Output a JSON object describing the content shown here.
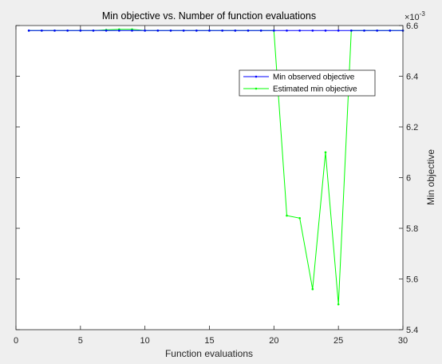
{
  "chart_data": {
    "type": "line",
    "title": "Min objective vs. Number of function evaluations",
    "xlabel": "Function evaluations",
    "ylabel": "Min objective",
    "y_exponent_label": "×10",
    "y_exponent_power": "-3",
    "xlim": [
      0,
      30
    ],
    "ylim": [
      5.4,
      6.6
    ],
    "y_scale_factor": 0.001,
    "xticks": [
      0,
      5,
      10,
      15,
      20,
      25,
      30
    ],
    "yticks": [
      5.4,
      5.6,
      5.8,
      6.0,
      6.2,
      6.4,
      6.6
    ],
    "ytick_labels": [
      "5.4",
      "5.6",
      "5.8",
      "6",
      "6.2",
      "6.4",
      "6.6"
    ],
    "y_axis_location": "right",
    "grid": false,
    "legend_location": "upper-right",
    "series": [
      {
        "name": "Min observed objective",
        "color": "#0000ff",
        "marker": "dot",
        "x": [
          1,
          2,
          3,
          4,
          5,
          6,
          7,
          8,
          9,
          10,
          11,
          12,
          13,
          14,
          15,
          16,
          17,
          18,
          19,
          20,
          21,
          22,
          23,
          24,
          25,
          26,
          27,
          28,
          29,
          30
        ],
        "y": [
          6.58,
          6.58,
          6.58,
          6.58,
          6.58,
          6.58,
          6.58,
          6.58,
          6.58,
          6.58,
          6.58,
          6.58,
          6.58,
          6.58,
          6.58,
          6.58,
          6.58,
          6.58,
          6.58,
          6.58,
          6.58,
          6.58,
          6.58,
          6.58,
          6.58,
          6.58,
          6.58,
          6.58,
          6.58,
          6.58
        ]
      },
      {
        "name": "Estimated min objective",
        "color": "#00ff00",
        "marker": "dot",
        "x": [
          1,
          2,
          3,
          4,
          5,
          6,
          7,
          8,
          9,
          10,
          11,
          12,
          13,
          14,
          15,
          16,
          17,
          18,
          19,
          20,
          21,
          22,
          23,
          24,
          25,
          26,
          27,
          28,
          29,
          30
        ],
        "y": [
          6.58,
          6.58,
          6.58,
          6.58,
          6.58,
          6.58,
          6.583,
          6.585,
          6.585,
          6.58,
          6.58,
          6.58,
          6.58,
          6.58,
          6.58,
          6.58,
          6.58,
          6.58,
          6.58,
          6.58,
          5.85,
          5.84,
          5.56,
          6.1,
          5.5,
          6.58,
          6.58,
          6.58,
          6.58,
          6.58
        ]
      }
    ]
  }
}
